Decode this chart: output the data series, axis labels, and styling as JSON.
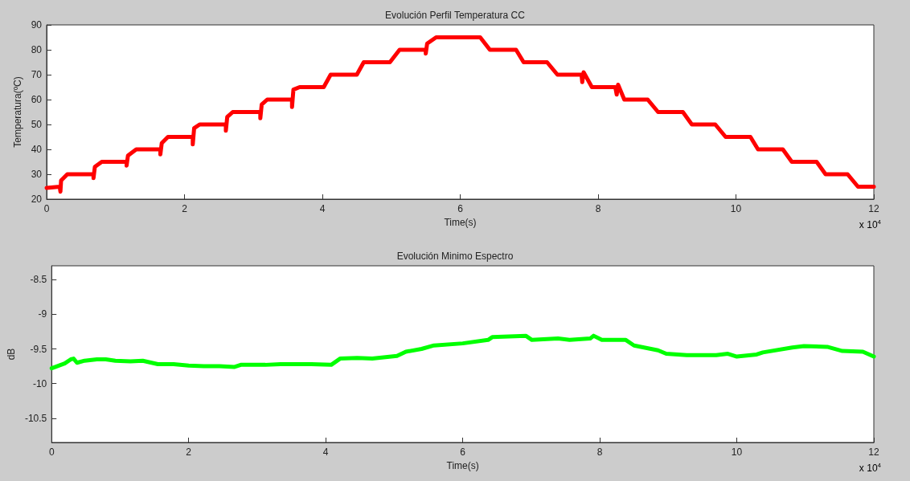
{
  "chart_data": [
    {
      "type": "line",
      "title": "Evolución Perfil Temperatura CC",
      "xlabel": "Time(s)",
      "ylabel": "Temperatura(ºC)",
      "annotations": [
        "x 10$^{4}$"
      ],
      "xlim": [
        0,
        12
      ],
      "xticks": [
        0,
        2,
        4,
        6,
        8,
        10,
        12
      ],
      "ylim": [
        20,
        90
      ],
      "yticks": [
        20,
        30,
        40,
        50,
        60,
        70,
        80,
        90
      ],
      "grid": false,
      "marker": "none",
      "line_style": "solid",
      "series": [
        {
          "color": "#ff0000",
          "x": [
            0,
            0.19,
            0.2,
            0.21,
            0.3,
            0.68,
            0.68,
            0.7,
            0.8,
            1.16,
            1.16,
            1.18,
            1.3,
            1.65,
            1.65,
            1.67,
            1.76,
            2.12,
            2.12,
            2.14,
            2.22,
            2.6,
            2.6,
            2.62,
            2.7,
            3.1,
            3.1,
            3.12,
            3.2,
            3.56,
            3.56,
            3.58,
            3.67,
            4.02,
            4.12,
            4.5,
            4.6,
            4.98,
            5.12,
            5.5,
            5.5,
            5.52,
            5.65,
            6.29,
            6.43,
            6.81,
            6.92,
            7.26,
            7.41,
            7.76,
            7.77,
            7.79,
            7.91,
            8.25,
            8.27,
            8.29,
            8.38,
            8.72,
            8.87,
            9.23,
            9.36,
            9.7,
            9.85,
            10.21,
            10.32,
            10.68,
            10.81,
            11.17,
            11.3,
            11.62,
            11.77,
            12
          ],
          "values": [
            24.5,
            25,
            23,
            27.5,
            30,
            30,
            28.5,
            33,
            35,
            35,
            33.5,
            37.5,
            40,
            40,
            38,
            42.5,
            45,
            45,
            42,
            48.5,
            50,
            50,
            47.5,
            53,
            55,
            55,
            52.5,
            58,
            60,
            60,
            57,
            64,
            65,
            65,
            70,
            70,
            75,
            75,
            80,
            80,
            78.5,
            82.5,
            85,
            85,
            80,
            80,
            75,
            75,
            70,
            70,
            67,
            71,
            65,
            65,
            62,
            66,
            60,
            60,
            55,
            55,
            50,
            50,
            45,
            45,
            40,
            40,
            35,
            35,
            30,
            30,
            25,
            25
          ]
        }
      ]
    },
    {
      "type": "line",
      "title": "Evolución Minimo Espectro",
      "xlabel": "Time(s)",
      "ylabel": "dB",
      "annotations": [
        "x 10$^{4}$"
      ],
      "xlim": [
        0,
        12
      ],
      "xticks": [
        0,
        2,
        4,
        6,
        8,
        10,
        12
      ],
      "ylim": [
        -10.85,
        -8.3
      ],
      "yticks": [
        -10.5,
        -10,
        -9.5,
        -9,
        -8.5
      ],
      "grid": false,
      "marker": "none",
      "line_style": "solid",
      "series": [
        {
          "color": "#00ff00",
          "x": [
            0,
            0.19,
            0.28,
            0.32,
            0.37,
            0.48,
            0.66,
            0.79,
            0.93,
            1.15,
            1.33,
            1.55,
            1.78,
            2.0,
            2.22,
            2.45,
            2.67,
            2.76,
            3.12,
            3.34,
            3.79,
            4.08,
            4.21,
            4.46,
            4.68,
            5.04,
            5.17,
            5.4,
            5.58,
            6.0,
            6.37,
            6.43,
            6.92,
            7.01,
            7.39,
            7.56,
            7.86,
            7.91,
            8.03,
            8.38,
            8.5,
            8.85,
            8.97,
            9.27,
            9.7,
            9.87,
            10.0,
            10.29,
            10.38,
            10.81,
            10.98,
            11.32,
            11.54,
            11.84,
            12.0
          ],
          "values": [
            -9.78,
            -9.71,
            -9.65,
            -9.64,
            -9.7,
            -9.67,
            -9.65,
            -9.65,
            -9.67,
            -9.68,
            -9.67,
            -9.72,
            -9.72,
            -9.74,
            -9.75,
            -9.75,
            -9.76,
            -9.73,
            -9.73,
            -9.72,
            -9.72,
            -9.73,
            -9.64,
            -9.63,
            -9.64,
            -9.6,
            -9.54,
            -9.5,
            -9.45,
            -9.42,
            -9.37,
            -9.33,
            -9.31,
            -9.37,
            -9.35,
            -9.37,
            -9.35,
            -9.31,
            -9.37,
            -9.37,
            -9.45,
            -9.52,
            -9.57,
            -9.59,
            -9.59,
            -9.57,
            -9.61,
            -9.58,
            -9.55,
            -9.48,
            -9.46,
            -9.47,
            -9.53,
            -9.54,
            -9.61
          ]
        }
      ]
    }
  ]
}
